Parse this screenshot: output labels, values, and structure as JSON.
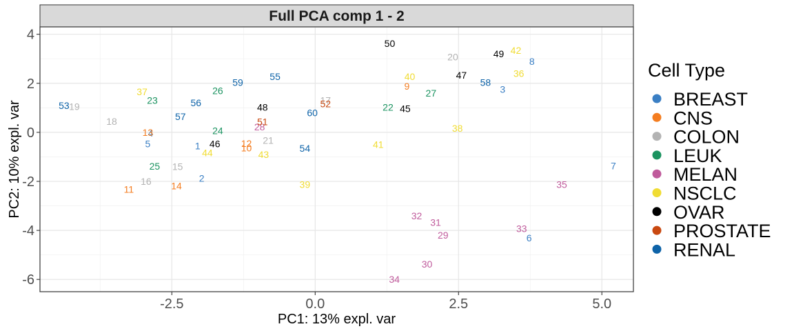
{
  "chart_data": {
    "type": "scatter",
    "title": "Full PCA comp 1 - 2",
    "xlabel": "PC1: 13% expl. var",
    "ylabel": "PC2: 10% expl. var",
    "xlim": [
      -4.8,
      5.55
    ],
    "ylim": [
      -6.5,
      4.3
    ],
    "xticks": [
      -2.5,
      0.0,
      2.5,
      5.0
    ],
    "xtick_labels": [
      "-2.5",
      "0.0",
      "2.5",
      "5.0"
    ],
    "yticks": [
      4,
      2,
      0,
      -2,
      -4,
      -6
    ],
    "ytick_labels": [
      "4",
      "2",
      "0",
      "-2",
      "-4",
      "-6"
    ],
    "grid": true,
    "legend": {
      "title": "Cell Type",
      "position": "right",
      "entries": [
        {
          "name": "BREAST",
          "color": "#3a7fc4"
        },
        {
          "name": "CNS",
          "color": "#f47d20"
        },
        {
          "name": "COLON",
          "color": "#b3b3b3"
        },
        {
          "name": "LEUK",
          "color": "#1b9360"
        },
        {
          "name": "MELAN",
          "color": "#c05b9c"
        },
        {
          "name": "NSCLC",
          "color": "#f0dc33"
        },
        {
          "name": "OVAR",
          "color": "#000000"
        },
        {
          "name": "PROSTATE",
          "color": "#c94911"
        },
        {
          "name": "RENAL",
          "color": "#0e63a8"
        }
      ]
    },
    "points": [
      {
        "label": "1",
        "x": -2.05,
        "y": -0.55,
        "group": "BREAST"
      },
      {
        "label": "2",
        "x": -1.98,
        "y": -1.88,
        "group": "BREAST"
      },
      {
        "label": "3",
        "x": 3.27,
        "y": 1.75,
        "group": "BREAST"
      },
      {
        "label": "4",
        "x": -2.87,
        "y": -0.03,
        "group": "BREAST"
      },
      {
        "label": "5",
        "x": -2.92,
        "y": -0.47,
        "group": "BREAST"
      },
      {
        "label": "6",
        "x": 3.73,
        "y": -4.3,
        "group": "BREAST"
      },
      {
        "label": "7",
        "x": 5.2,
        "y": -1.37,
        "group": "BREAST"
      },
      {
        "label": "8",
        "x": 3.78,
        "y": 2.9,
        "group": "BREAST"
      },
      {
        "label": "9",
        "x": 1.6,
        "y": 1.88,
        "group": "CNS"
      },
      {
        "label": "10",
        "x": -1.2,
        "y": -0.63,
        "group": "CNS"
      },
      {
        "label": "11",
        "x": -3.25,
        "y": -2.33,
        "group": "CNS"
      },
      {
        "label": "12",
        "x": -1.2,
        "y": -0.45,
        "group": "CNS"
      },
      {
        "label": "13",
        "x": -2.92,
        "y": 0.0,
        "group": "CNS"
      },
      {
        "label": "14",
        "x": -2.42,
        "y": -2.18,
        "group": "CNS"
      },
      {
        "label": "15",
        "x": -2.4,
        "y": -1.4,
        "group": "COLON"
      },
      {
        "label": "16",
        "x": -2.95,
        "y": -2.0,
        "group": "COLON"
      },
      {
        "label": "17",
        "x": 0.18,
        "y": 1.3,
        "group": "COLON"
      },
      {
        "label": "18",
        "x": -3.55,
        "y": 0.45,
        "group": "COLON"
      },
      {
        "label": "19",
        "x": -4.2,
        "y": 1.05,
        "group": "COLON"
      },
      {
        "label": "20",
        "x": 2.4,
        "y": 3.08,
        "group": "COLON"
      },
      {
        "label": "21",
        "x": -0.82,
        "y": -0.32,
        "group": "COLON"
      },
      {
        "label": "22",
        "x": 1.27,
        "y": 1.03,
        "group": "LEUK"
      },
      {
        "label": "23",
        "x": -2.84,
        "y": 1.3,
        "group": "LEUK"
      },
      {
        "label": "24",
        "x": -1.7,
        "y": 0.07,
        "group": "LEUK"
      },
      {
        "label": "25",
        "x": -2.8,
        "y": -1.38,
        "group": "LEUK"
      },
      {
        "label": "26",
        "x": -1.7,
        "y": 1.7,
        "group": "LEUK"
      },
      {
        "label": "27",
        "x": 2.02,
        "y": 1.6,
        "group": "LEUK"
      },
      {
        "label": "28",
        "x": -0.97,
        "y": 0.22,
        "group": "MELAN"
      },
      {
        "label": "29",
        "x": 2.23,
        "y": -4.2,
        "group": "MELAN"
      },
      {
        "label": "30",
        "x": 1.95,
        "y": -5.37,
        "group": "MELAN"
      },
      {
        "label": "31",
        "x": 2.1,
        "y": -3.68,
        "group": "MELAN"
      },
      {
        "label": "32",
        "x": 1.77,
        "y": -3.4,
        "group": "MELAN"
      },
      {
        "label": "33",
        "x": 3.6,
        "y": -3.93,
        "group": "MELAN"
      },
      {
        "label": "34",
        "x": 1.38,
        "y": -6.0,
        "group": "MELAN"
      },
      {
        "label": "35",
        "x": 4.3,
        "y": -2.12,
        "group": "MELAN"
      },
      {
        "label": "36",
        "x": 3.55,
        "y": 2.4,
        "group": "NSCLC"
      },
      {
        "label": "37",
        "x": -3.02,
        "y": 1.66,
        "group": "NSCLC"
      },
      {
        "label": "38",
        "x": 2.48,
        "y": 0.17,
        "group": "NSCLC"
      },
      {
        "label": "39",
        "x": -0.18,
        "y": -2.12,
        "group": "NSCLC"
      },
      {
        "label": "40",
        "x": 1.65,
        "y": 2.27,
        "group": "NSCLC"
      },
      {
        "label": "41",
        "x": 1.1,
        "y": -0.5,
        "group": "NSCLC"
      },
      {
        "label": "42",
        "x": 3.5,
        "y": 3.35,
        "group": "NSCLC"
      },
      {
        "label": "43",
        "x": -0.9,
        "y": -0.9,
        "group": "NSCLC"
      },
      {
        "label": "44",
        "x": -1.88,
        "y": -0.83,
        "group": "NSCLC"
      },
      {
        "label": "45",
        "x": 1.57,
        "y": 0.97,
        "group": "OVAR"
      },
      {
        "label": "46",
        "x": -1.75,
        "y": -0.47,
        "group": "OVAR"
      },
      {
        "label": "47",
        "x": 2.55,
        "y": 2.33,
        "group": "OVAR"
      },
      {
        "label": "48",
        "x": -0.92,
        "y": 1.03,
        "group": "OVAR"
      },
      {
        "label": "49",
        "x": 3.2,
        "y": 3.2,
        "group": "OVAR"
      },
      {
        "label": "50",
        "x": 1.3,
        "y": 3.63,
        "group": "OVAR"
      },
      {
        "label": "51",
        "x": -0.92,
        "y": 0.43,
        "group": "PROSTATE"
      },
      {
        "label": "52",
        "x": 0.18,
        "y": 1.17,
        "group": "PROSTATE"
      },
      {
        "label": "53",
        "x": -4.38,
        "y": 1.1,
        "group": "RENAL"
      },
      {
        "label": "54",
        "x": -0.18,
        "y": -0.65,
        "group": "RENAL"
      },
      {
        "label": "55",
        "x": -0.7,
        "y": 2.27,
        "group": "RENAL"
      },
      {
        "label": "56",
        "x": -2.08,
        "y": 1.2,
        "group": "RENAL"
      },
      {
        "label": "57",
        "x": -2.35,
        "y": 0.65,
        "group": "RENAL"
      },
      {
        "label": "58",
        "x": 2.97,
        "y": 2.03,
        "group": "RENAL"
      },
      {
        "label": "59",
        "x": -1.35,
        "y": 2.03,
        "group": "RENAL"
      },
      {
        "label": "60",
        "x": -0.05,
        "y": 0.8,
        "group": "RENAL"
      }
    ]
  }
}
